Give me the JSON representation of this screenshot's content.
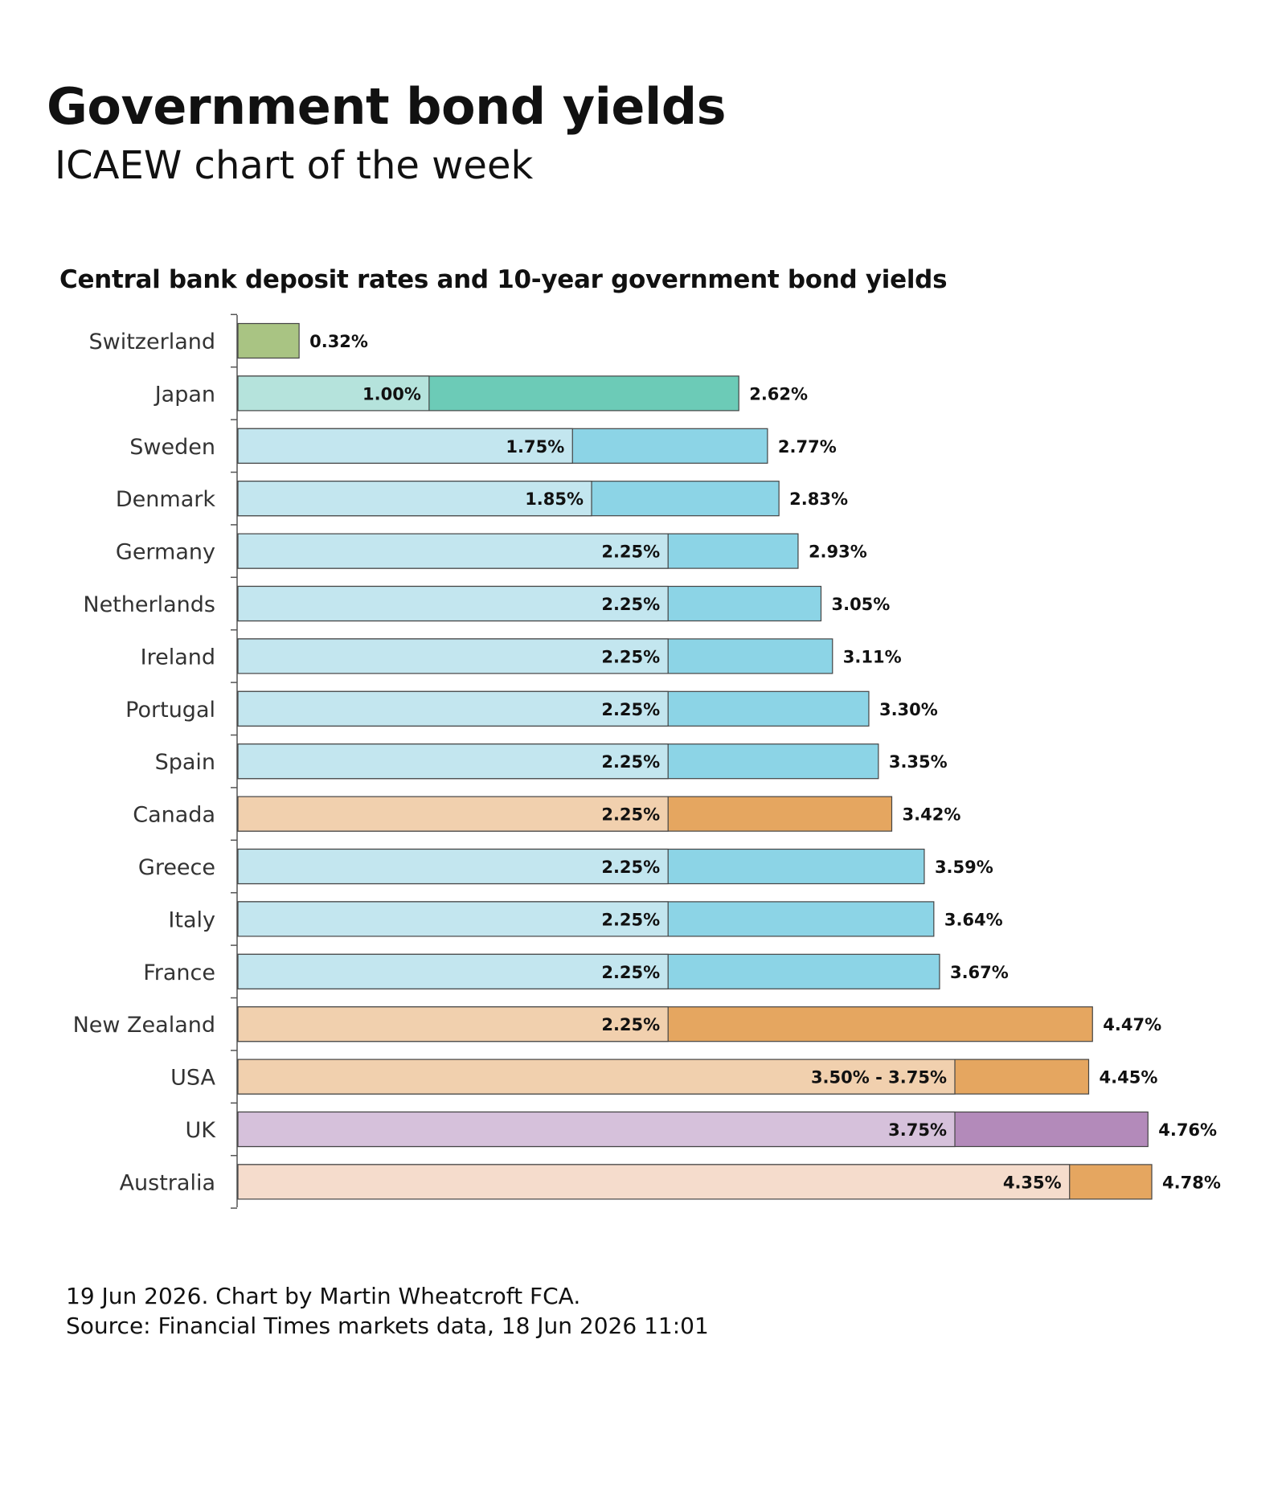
{
  "header": {
    "title": "Government bond yields",
    "subtitle": "ICAEW chart of the week"
  },
  "footer": {
    "line1": "19 Jun 2026.  Chart by Martin Wheatcroft FCA.",
    "line2": "Source: Financial Times markets data, 18 Jun 2026 11:01"
  },
  "colors": {
    "green_light": "#a9c483",
    "teal_light": "#b5e3dc",
    "teal_dark": "#6ccbb7",
    "blue_light": "#c3e6ef",
    "blue_dark": "#8cd4e6",
    "orange_light": "#f1d0ae",
    "orange_dark": "#e5a660",
    "peach_light": "#f5dccc",
    "purple_light": "#d6c1db",
    "purple_dark": "#b38aba"
  },
  "chart_data": {
    "type": "bar",
    "orientation": "horizontal",
    "title": "Central bank deposit rates and 10-year government bond yields",
    "categories": [
      "Switzerland",
      "Japan",
      "Sweden",
      "Denmark",
      "Germany",
      "Netherlands",
      "Ireland",
      "Portugal",
      "Spain",
      "Canada",
      "Greece",
      "Italy",
      "France",
      "New Zealand",
      "USA",
      "UK",
      "Australia"
    ],
    "series": [
      {
        "values": [
          0,
          1.0,
          1.75,
          1.85,
          2.25,
          2.25,
          2.25,
          2.25,
          2.25,
          2.25,
          2.25,
          2.25,
          2.25,
          2.25,
          3.75,
          3.75,
          4.35
        ],
        "labels": [
          "",
          "1.00%",
          "1.75%",
          "1.85%",
          "2.25%",
          "2.25%",
          "2.25%",
          "2.25%",
          "2.25%",
          "2.25%",
          "2.25%",
          "2.25%",
          "2.25%",
          "2.25%",
          "3.50% - 3.75%",
          "3.75%",
          "4.35%"
        ]
      },
      {
        "values": [
          0.32,
          2.62,
          2.77,
          2.83,
          2.93,
          3.05,
          3.11,
          3.3,
          3.35,
          3.42,
          3.59,
          3.64,
          3.67,
          4.47,
          4.45,
          4.76,
          4.78
        ],
        "labels": [
          "0.32%",
          "2.62%",
          "2.77%",
          "2.83%",
          "2.93%",
          "3.05%",
          "3.11%",
          "3.30%",
          "3.35%",
          "3.42%",
          "3.59%",
          "3.64%",
          "3.67%",
          "4.47%",
          "4.45%",
          "4.76%",
          "4.78%"
        ]
      }
    ],
    "bar_colors": [
      [
        "green_light",
        "green_light"
      ],
      [
        "teal_light",
        "teal_dark"
      ],
      [
        "blue_light",
        "blue_dark"
      ],
      [
        "blue_light",
        "blue_dark"
      ],
      [
        "blue_light",
        "blue_dark"
      ],
      [
        "blue_light",
        "blue_dark"
      ],
      [
        "blue_light",
        "blue_dark"
      ],
      [
        "blue_light",
        "blue_dark"
      ],
      [
        "blue_light",
        "blue_dark"
      ],
      [
        "orange_light",
        "orange_dark"
      ],
      [
        "blue_light",
        "blue_dark"
      ],
      [
        "blue_light",
        "blue_dark"
      ],
      [
        "blue_light",
        "blue_dark"
      ],
      [
        "orange_light",
        "orange_dark"
      ],
      [
        "orange_light",
        "orange_dark"
      ],
      [
        "purple_light",
        "purple_dark"
      ],
      [
        "peach_light",
        "orange_dark"
      ]
    ],
    "xlim": [
      0,
      5.0
    ],
    "grid": false,
    "legend": "none"
  }
}
